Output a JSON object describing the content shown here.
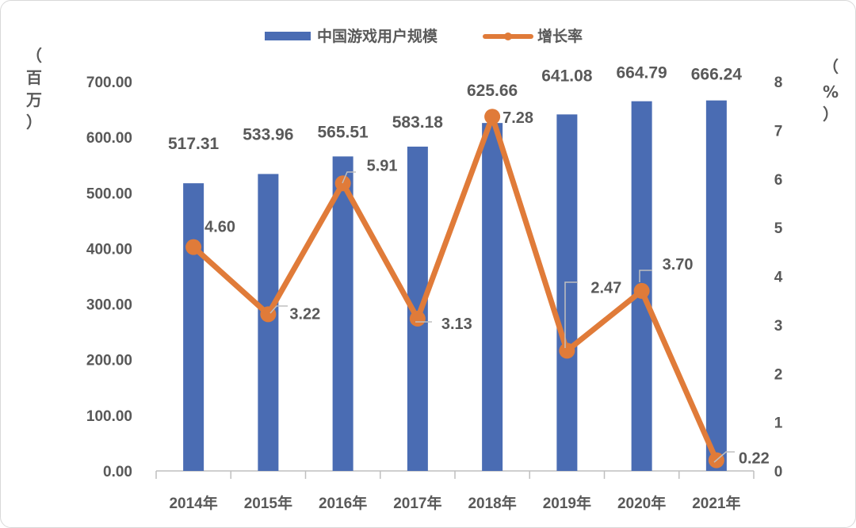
{
  "chart_data": {
    "type": "bar+line",
    "categories": [
      "2014年",
      "2015年",
      "2016年",
      "2017年",
      "2018年",
      "2019年",
      "2020年",
      "2021年"
    ],
    "series": [
      {
        "name": "中国游戏用户规模",
        "type": "bar",
        "axis": "left",
        "color": "#4a6cb3",
        "values": [
          517.31,
          533.96,
          565.51,
          583.18,
          625.66,
          641.08,
          664.79,
          666.24
        ],
        "labels": [
          "517.31",
          "533.96",
          "565.51",
          "583.18",
          "625.66",
          "641.08",
          "664.79",
          "666.24"
        ]
      },
      {
        "name": "增长率",
        "type": "line",
        "axis": "right",
        "color": "#e07b39",
        "values": [
          4.6,
          3.22,
          5.91,
          3.13,
          7.28,
          2.47,
          3.7,
          0.22
        ],
        "labels": [
          "4.60",
          "3.22",
          "5.91",
          "3.13",
          "7.28",
          "2.47",
          "3.70",
          "0.22"
        ]
      }
    ],
    "left_axis": {
      "unit_label": [
        "（",
        "百",
        "万",
        "）"
      ],
      "ylim": [
        0,
        700
      ],
      "ticks": [
        "0.00",
        "100.00",
        "200.00",
        "300.00",
        "400.00",
        "500.00",
        "600.00",
        "700.00"
      ]
    },
    "right_axis": {
      "unit_label": [
        "（",
        "%",
        "）"
      ],
      "ylim": [
        0,
        8
      ],
      "ticks": [
        "0",
        "1",
        "2",
        "3",
        "4",
        "5",
        "6",
        "7",
        "8"
      ]
    },
    "legend": {
      "position": "top-center"
    },
    "grid": false
  }
}
